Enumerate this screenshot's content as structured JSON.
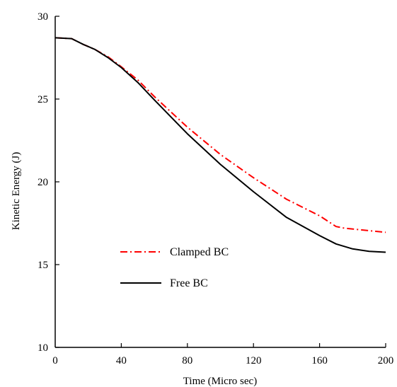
{
  "chart_data": {
    "type": "line",
    "title": "",
    "xlabel": "Time (Micro sec)",
    "ylabel": "Kinetic Energy (J)",
    "xlim": [
      0,
      200
    ],
    "ylim": [
      10,
      30
    ],
    "xticks": [
      0,
      40,
      80,
      120,
      160,
      200
    ],
    "yticks": [
      10,
      15,
      20,
      25,
      30
    ],
    "grid": false,
    "legend_placement": "center-left",
    "series": [
      {
        "name": "Clamped BC",
        "color": "#ff0000",
        "style": "dash-dot",
        "x": [
          0,
          10,
          17,
          24,
          32,
          40,
          50,
          60,
          80,
          100,
          120,
          140,
          160,
          170,
          175,
          185,
          200
        ],
        "y": [
          28.7,
          28.65,
          28.3,
          28.0,
          27.55,
          26.95,
          26.15,
          25.15,
          23.3,
          21.65,
          20.25,
          18.95,
          17.95,
          17.3,
          17.2,
          17.1,
          16.95
        ]
      },
      {
        "name": "Free BC",
        "color": "#000000",
        "style": "solid",
        "x": [
          0,
          10,
          17,
          24,
          32,
          40,
          50,
          60,
          80,
          100,
          120,
          140,
          160,
          170,
          180,
          190,
          200
        ],
        "y": [
          28.7,
          28.65,
          28.3,
          28.0,
          27.5,
          26.9,
          26.0,
          24.95,
          22.9,
          21.05,
          19.4,
          17.85,
          16.75,
          16.25,
          15.95,
          15.8,
          15.75
        ]
      }
    ]
  }
}
